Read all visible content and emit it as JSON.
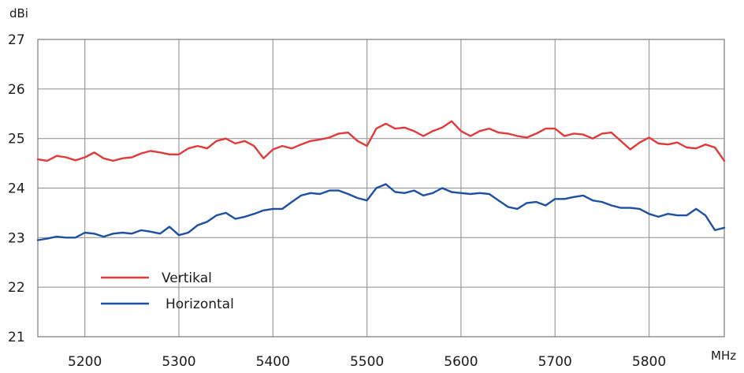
{
  "chart_data": {
    "type": "line",
    "title": "",
    "ylabel": "dBi",
    "xlabel": "MHz",
    "xlim": [
      5150,
      5880
    ],
    "ylim": [
      21,
      27
    ],
    "grid": true,
    "legend_position": "bottom-left",
    "x_ticks": [
      "5200",
      "5300",
      "5400",
      "5500",
      "5600",
      "5700",
      "5800"
    ],
    "y_ticks": [
      "21",
      "22",
      "23",
      "24",
      "25",
      "26",
      "27"
    ],
    "series": [
      {
        "name": "Vertikal",
        "color": "#e03a3a",
        "x": [
          5150,
          5160,
          5170,
          5180,
          5190,
          5200,
          5210,
          5220,
          5230,
          5240,
          5250,
          5260,
          5270,
          5280,
          5290,
          5300,
          5310,
          5320,
          5330,
          5340,
          5350,
          5360,
          5370,
          5380,
          5390,
          5400,
          5410,
          5420,
          5430,
          5440,
          5450,
          5460,
          5470,
          5480,
          5490,
          5500,
          5510,
          5520,
          5530,
          5540,
          5550,
          5560,
          5570,
          5580,
          5590,
          5600,
          5610,
          5620,
          5630,
          5640,
          5650,
          5660,
          5670,
          5680,
          5690,
          5700,
          5710,
          5720,
          5730,
          5740,
          5750,
          5760,
          5770,
          5780,
          5790,
          5800,
          5810,
          5820,
          5830,
          5840,
          5850,
          5860,
          5870,
          5880
        ],
        "values": [
          24.58,
          24.55,
          24.65,
          24.62,
          24.56,
          24.62,
          24.72,
          24.6,
          24.55,
          24.6,
          24.62,
          24.7,
          24.75,
          24.72,
          24.68,
          24.68,
          24.8,
          24.85,
          24.8,
          24.95,
          25.0,
          24.9,
          24.95,
          24.85,
          24.6,
          24.78,
          24.85,
          24.8,
          24.88,
          24.95,
          24.98,
          25.02,
          25.1,
          25.12,
          24.95,
          24.85,
          25.2,
          25.3,
          25.2,
          25.22,
          25.15,
          25.05,
          25.15,
          25.22,
          25.35,
          25.15,
          25.05,
          25.15,
          25.2,
          25.12,
          25.1,
          25.05,
          25.02,
          25.1,
          25.2,
          25.2,
          25.05,
          25.1,
          25.08,
          25.0,
          25.1,
          25.12,
          24.95,
          24.78,
          24.92,
          25.02,
          24.9,
          24.88,
          24.92,
          24.82,
          24.8,
          24.88,
          24.82,
          24.55
        ]
      },
      {
        "name": "Horizontal",
        "color": "#1f4fa3",
        "x": [
          5150,
          5160,
          5170,
          5180,
          5190,
          5200,
          5210,
          5220,
          5230,
          5240,
          5250,
          5260,
          5270,
          5280,
          5290,
          5300,
          5310,
          5320,
          5330,
          5340,
          5350,
          5360,
          5370,
          5380,
          5390,
          5400,
          5410,
          5420,
          5430,
          5440,
          5450,
          5460,
          5470,
          5480,
          5490,
          5500,
          5510,
          5520,
          5530,
          5540,
          5550,
          5560,
          5570,
          5580,
          5590,
          5600,
          5610,
          5620,
          5630,
          5640,
          5650,
          5660,
          5670,
          5680,
          5690,
          5700,
          5710,
          5720,
          5730,
          5740,
          5750,
          5760,
          5770,
          5780,
          5790,
          5800,
          5810,
          5820,
          5830,
          5840,
          5850,
          5860,
          5870,
          5880
        ],
        "values": [
          22.95,
          22.98,
          23.02,
          23.0,
          23.0,
          23.1,
          23.08,
          23.02,
          23.08,
          23.1,
          23.08,
          23.15,
          23.12,
          23.08,
          23.22,
          23.05,
          23.1,
          23.25,
          23.32,
          23.45,
          23.5,
          23.38,
          23.42,
          23.48,
          23.55,
          23.58,
          23.58,
          23.72,
          23.85,
          23.9,
          23.88,
          23.95,
          23.95,
          23.88,
          23.8,
          23.75,
          24.0,
          24.08,
          23.92,
          23.9,
          23.95,
          23.85,
          23.9,
          24.0,
          23.92,
          23.9,
          23.88,
          23.9,
          23.88,
          23.75,
          23.62,
          23.58,
          23.7,
          23.72,
          23.65,
          23.78,
          23.78,
          23.82,
          23.85,
          23.75,
          23.72,
          23.65,
          23.6,
          23.6,
          23.58,
          23.48,
          23.42,
          23.48,
          23.45,
          23.45,
          23.58,
          23.45,
          23.15,
          23.2
        ]
      }
    ]
  }
}
